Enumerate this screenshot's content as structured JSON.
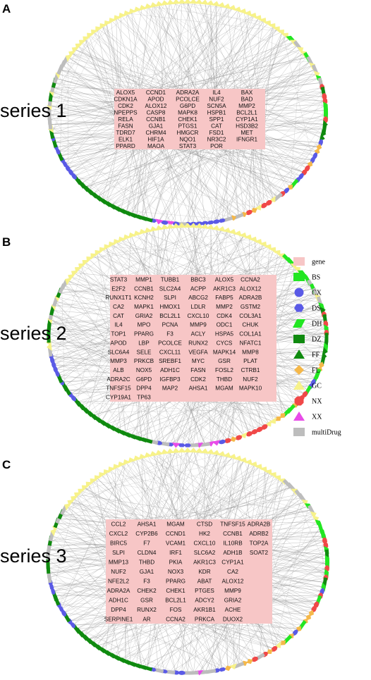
{
  "legend": {
    "items": [
      {
        "label": "gene",
        "shape": "rect",
        "color": "#f7c6c6"
      },
      {
        "label": "BS",
        "shape": "rect",
        "color": "#22e622"
      },
      {
        "label": "CX",
        "shape": "circle",
        "color": "#5a5ae6"
      },
      {
        "label": "DS",
        "shape": "hexagon",
        "color": "#5a5ae6"
      },
      {
        "label": "DH",
        "shape": "parallelogram",
        "color": "#22e622"
      },
      {
        "label": "DZ",
        "shape": "rect",
        "color": "#0f8a0f"
      },
      {
        "label": "FF",
        "shape": "triangle",
        "color": "#0f8a0f"
      },
      {
        "label": "FL",
        "shape": "diamond",
        "color": "#f5b84a"
      },
      {
        "label": "GC",
        "shape": "triangle",
        "color": "#f7f28a"
      },
      {
        "label": "NX",
        "shape": "octagon",
        "color": "#f04848"
      },
      {
        "label": "XX",
        "shape": "triangle",
        "color": "#e84ce8"
      },
      {
        "label": "multiDrug",
        "shape": "rect",
        "color": "#bdbdbd"
      }
    ]
  },
  "panels": [
    {
      "letter": "A",
      "series_label": "series 1",
      "genes": [
        [
          "ALOX5",
          "CCND1",
          "ADRA2A",
          "IL4",
          "BAX"
        ],
        [
          "CDKN1A",
          "APOD",
          "PCOLCE",
          "NUF2",
          "BAD"
        ],
        [
          "CDK2",
          "ALOX12",
          "G6PD",
          "SCN5A",
          "MMP2"
        ],
        [
          "NPEPPS",
          "CASP8",
          "MAPK8",
          "HSPB1",
          "BCL2L1"
        ],
        [
          "RELA",
          "CCNB1",
          "CHEK1",
          "SPP1",
          "CYP1A1"
        ],
        [
          "FASN",
          "GJA1",
          "PTGS1",
          "CAT",
          "HSD3B2"
        ],
        [
          "TDRD7",
          "CHRM4",
          "HMGCR",
          "FSD1",
          "MET"
        ],
        [
          "ELK1",
          "HIF1A",
          "NQO1",
          "NR3C2",
          "IFNGR1"
        ],
        [
          "PPARD",
          "MAOA",
          "STAT3",
          "POR",
          ""
        ]
      ]
    },
    {
      "letter": "B",
      "series_label": "series 2",
      "genes": [
        [
          "STAT3",
          "MMP1",
          "TUBB1",
          "BBC3",
          "ALOX5",
          "CCNA2"
        ],
        [
          "E2F2",
          "CCNB1",
          "SLC2A4",
          "ACPP",
          "AKR1C3",
          "ALOX12"
        ],
        [
          "RUNX1T1",
          "KCNH2",
          "SLPI",
          "ABCG2",
          "FABP5",
          "ADRA2B"
        ],
        [
          "CA2",
          "MAPK1",
          "HMOX1",
          "LDLR",
          "MMP2",
          "GSTM2"
        ],
        [
          "CAT",
          "GRIA2",
          "BCL2L1",
          "CXCL10",
          "CDK4",
          "COL3A1"
        ],
        [
          "IL4",
          "MPO",
          "PCNA",
          "MMP9",
          "ODC1",
          "CHUK"
        ],
        [
          "TOP1",
          "PPARG",
          "F3",
          "ACLY",
          "HSPA5",
          "COL1A1"
        ],
        [
          "APOD",
          "LBP",
          "PCOLCE",
          "RUNX2",
          "CYCS",
          "NFATC1"
        ],
        [
          "SLC6A4",
          "SELE",
          "CXCL11",
          "VEGFA",
          "MAPK14",
          "MMP8"
        ],
        [
          "MMP3",
          "PRKCB",
          "SREBF1",
          "MYC",
          "GSR",
          "PLAT"
        ],
        [
          "ALB",
          "NOX5",
          "ADH1C",
          "FASN",
          "FOSL2",
          "CTRB1"
        ],
        [
          "ADRA2C",
          "G6PD",
          "IGFBP3",
          "CDK2",
          "THBD",
          "NUF2"
        ],
        [
          "TNFSF15",
          "DPP4",
          "MAP2",
          "AHSA1",
          "MGAM",
          "MAPK10"
        ],
        [
          "CYP19A1",
          "TP63",
          "",
          "",
          "",
          ""
        ]
      ]
    },
    {
      "letter": "C",
      "series_label": "series 3",
      "genes": [
        [
          "CCL2",
          "AHSA1",
          "MGAM",
          "CTSD",
          "TNFSF15",
          "ADRA2B"
        ],
        [
          "CXCL2",
          "CYP2B6",
          "CCND1",
          "HK2",
          "CCNB1",
          "ADRB2"
        ],
        [
          "BIRC5",
          "F7",
          "VCAM1",
          "CXCL10",
          "IL10RB",
          "TOP2A"
        ],
        [
          "SLPI",
          "CLDN4",
          "IRF1",
          "SLC6A2",
          "ADH1B",
          "SOAT2"
        ],
        [
          "MMP13",
          "THBD",
          "PKIA",
          "AKR1C3",
          "CYP1A1",
          ""
        ],
        [
          "NUF2",
          "GJA1",
          "NOX3",
          "KDR",
          "CA2",
          ""
        ],
        [
          "NFE2L2",
          "F3",
          "PPARG",
          "ABAT",
          "ALOX12",
          ""
        ],
        [
          "ADRA2A",
          "CHEK2",
          "CHEK1",
          "PTGES",
          "MMP9",
          ""
        ],
        [
          "ADH1C",
          "GSR",
          "BCL2L1",
          "ADCY2",
          "GRIA2",
          ""
        ],
        [
          "DPP4",
          "RUNX2",
          "FOS",
          "AKR1B1",
          "ACHE",
          ""
        ],
        [
          "SERPINE1",
          "AR",
          "CCNA2",
          "PRKCA",
          "DUOX2",
          ""
        ]
      ]
    }
  ]
}
